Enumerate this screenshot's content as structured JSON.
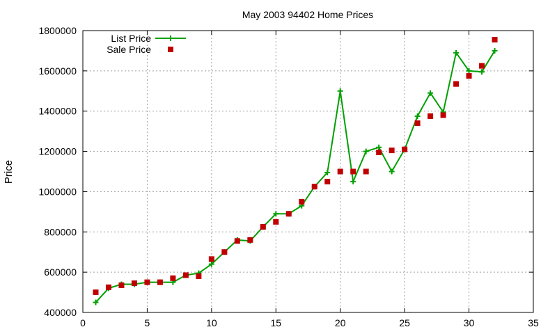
{
  "chart_data": {
    "type": "line",
    "title": "May 2003 94402 Home Prices",
    "xlabel": "",
    "ylabel": "Price",
    "xlim": [
      0,
      35
    ],
    "ylim": [
      400000,
      1800000
    ],
    "x_ticks": [
      0,
      5,
      10,
      15,
      20,
      25,
      30,
      35
    ],
    "y_ticks": [
      400000,
      600000,
      800000,
      1000000,
      1200000,
      1400000,
      1600000,
      1800000
    ],
    "grid": true,
    "legend_position": "top-left",
    "series": [
      {
        "name": "List Price",
        "style": "line-plus",
        "color": "#00a000",
        "x": [
          1,
          2,
          3,
          4,
          5,
          6,
          7,
          8,
          9,
          10,
          11,
          12,
          13,
          14,
          15,
          16,
          17,
          18,
          19,
          20,
          21,
          22,
          23,
          24,
          25,
          26,
          27,
          28,
          29,
          30,
          31,
          32
        ],
        "values": [
          450000,
          520000,
          540000,
          540000,
          550000,
          550000,
          550000,
          585000,
          595000,
          640000,
          700000,
          760000,
          755000,
          825000,
          890000,
          890000,
          930000,
          1025000,
          1095000,
          1500000,
          1050000,
          1200000,
          1220000,
          1100000,
          1210000,
          1375000,
          1490000,
          1395000,
          1690000,
          1600000,
          1595000,
          1700000
        ]
      },
      {
        "name": "Sale Price",
        "style": "square",
        "color": "#c00000",
        "x": [
          1,
          2,
          3,
          4,
          5,
          6,
          7,
          8,
          9,
          10,
          11,
          12,
          13,
          14,
          15,
          16,
          17,
          18,
          19,
          20,
          21,
          22,
          23,
          24,
          25,
          26,
          27,
          28,
          29,
          30,
          31,
          32
        ],
        "values": [
          500000,
          525000,
          535000,
          545000,
          550000,
          550000,
          570000,
          585000,
          580000,
          665000,
          700000,
          755000,
          760000,
          825000,
          850000,
          890000,
          950000,
          1025000,
          1050000,
          1100000,
          1100000,
          1100000,
          1195000,
          1205000,
          1210000,
          1340000,
          1375000,
          1380000,
          1535000,
          1575000,
          1625000,
          1755000
        ]
      }
    ]
  }
}
